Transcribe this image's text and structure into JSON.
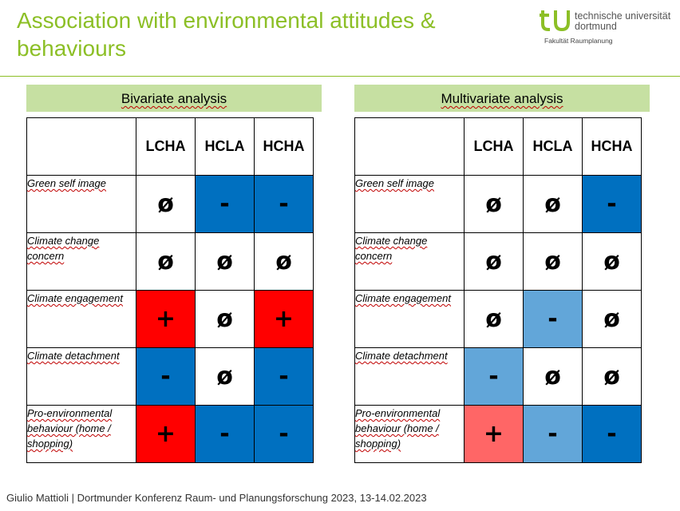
{
  "slide": {
    "title_line1": "Association with environmental attitudes &",
    "title_line2": "behaviours",
    "footer": "Giulio Mattioli | Dortmunder Konferenz Raum- und Planungsforschung 2023, 13-14.02.2023"
  },
  "logo": {
    "line1": "technische universität",
    "line2": "dortmund",
    "faculty": "Fakultät Raumplanung"
  },
  "colors": {
    "title": "#8cbf26",
    "header_fill": "#c6e0a2",
    "dark_blue": "#0070c0",
    "light_blue": "#62a6d9",
    "red": "#ff0000",
    "light_red": "#ff6666"
  },
  "bivariate": {
    "header": "Bivariate analysis",
    "columns": [
      "LCHA",
      "HCLA",
      "HCHA"
    ],
    "rows": [
      {
        "label": "Green self image",
        "cells": [
          {
            "v": "ø",
            "c": "white"
          },
          {
            "v": "-",
            "c": "dark_blue"
          },
          {
            "v": "-",
            "c": "dark_blue"
          }
        ]
      },
      {
        "label": "Climate change concern",
        "cells": [
          {
            "v": "ø",
            "c": "white"
          },
          {
            "v": "ø",
            "c": "white"
          },
          {
            "v": "ø",
            "c": "white"
          }
        ]
      },
      {
        "label": "Climate engagement",
        "cells": [
          {
            "v": "+",
            "c": "red"
          },
          {
            "v": "ø",
            "c": "white"
          },
          {
            "v": "+",
            "c": "red"
          }
        ]
      },
      {
        "label": "Climate detachment",
        "cells": [
          {
            "v": "-",
            "c": "dark_blue"
          },
          {
            "v": "ø",
            "c": "white"
          },
          {
            "v": "-",
            "c": "dark_blue"
          }
        ]
      },
      {
        "label": "Pro-environmental behaviour (home / shopping)",
        "cells": [
          {
            "v": "+",
            "c": "red"
          },
          {
            "v": "-",
            "c": "dark_blue"
          },
          {
            "v": "-",
            "c": "dark_blue"
          }
        ]
      }
    ]
  },
  "multivariate": {
    "header": "Multivariate analysis",
    "columns": [
      "LCHA",
      "HCLA",
      "HCHA"
    ],
    "rows": [
      {
        "label": "Green self image",
        "cells": [
          {
            "v": "ø",
            "c": "white"
          },
          {
            "v": "ø",
            "c": "white"
          },
          {
            "v": "-",
            "c": "dark_blue"
          }
        ]
      },
      {
        "label": "Climate change concern",
        "cells": [
          {
            "v": "ø",
            "c": "white"
          },
          {
            "v": "ø",
            "c": "white"
          },
          {
            "v": "ø",
            "c": "white"
          }
        ]
      },
      {
        "label": "Climate engagement",
        "cells": [
          {
            "v": "ø",
            "c": "white"
          },
          {
            "v": "-",
            "c": "light_blue"
          },
          {
            "v": "ø",
            "c": "white"
          }
        ]
      },
      {
        "label": "Climate detachment",
        "cells": [
          {
            "v": "-",
            "c": "light_blue"
          },
          {
            "v": "ø",
            "c": "white"
          },
          {
            "v": "ø",
            "c": "white"
          }
        ]
      },
      {
        "label": "Pro-environmental behaviour (home / shopping)",
        "cells": [
          {
            "v": "+",
            "c": "light_red"
          },
          {
            "v": "-",
            "c": "light_blue"
          },
          {
            "v": "-",
            "c": "dark_blue"
          }
        ]
      }
    ]
  }
}
